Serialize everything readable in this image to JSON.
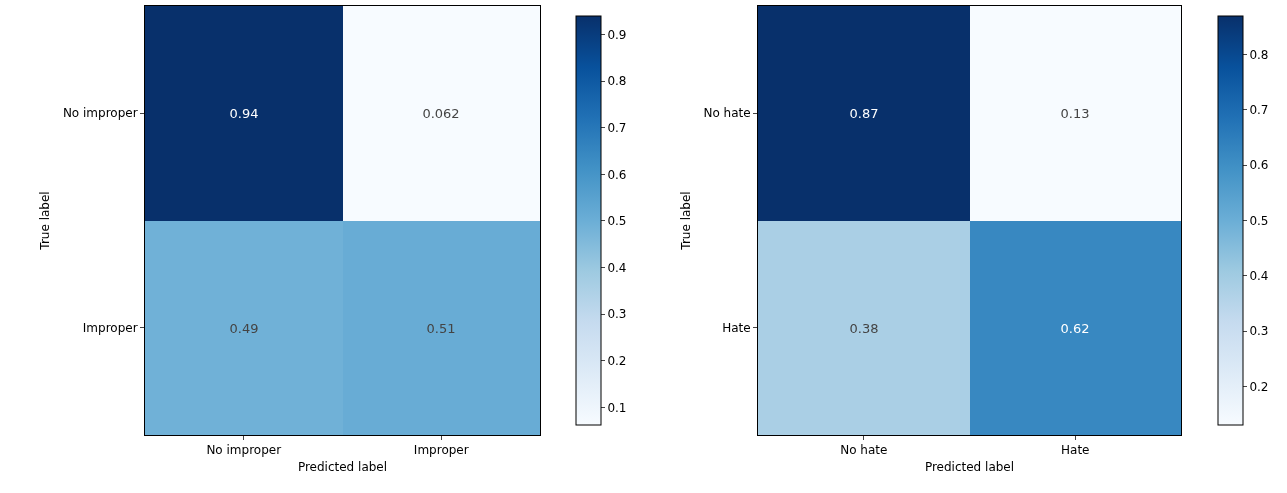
{
  "chart_data": [
    {
      "type": "heatmap",
      "categories": [
        "No improper",
        "Improper"
      ],
      "y_categories": [
        "No improper",
        "Improper"
      ],
      "cells": [
        [
          0.94,
          0.062
        ],
        [
          0.49,
          0.51
        ]
      ],
      "data_labels": true,
      "xlabel": "Predicted label",
      "ylabel": "True label",
      "clim": [
        0.062,
        0.94
      ],
      "cticks": [
        0.1,
        0.2,
        0.3,
        0.4,
        0.5,
        0.6,
        0.7,
        0.8,
        0.9
      ]
    },
    {
      "type": "heatmap",
      "categories": [
        "No hate",
        "Hate"
      ],
      "y_categories": [
        "No hate",
        "Hate"
      ],
      "cells": [
        [
          0.87,
          0.13
        ],
        [
          0.38,
          0.62
        ]
      ],
      "data_labels": true,
      "xlabel": "Predicted label",
      "ylabel": "True label",
      "clim": [
        0.13,
        0.87
      ],
      "cticks": [
        0.2,
        0.3,
        0.4,
        0.5,
        0.6,
        0.7,
        0.8
      ]
    }
  ]
}
